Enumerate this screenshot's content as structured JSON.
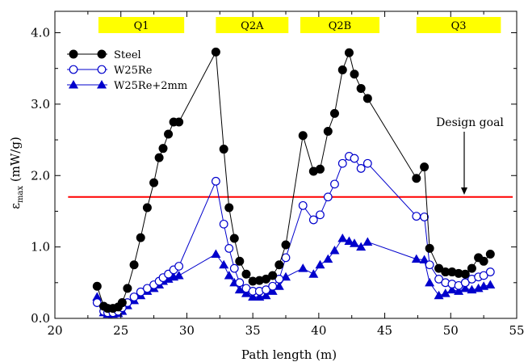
{
  "chart_data": {
    "type": "line",
    "xlabel": "Path length (m)",
    "ylabel_main": "ε",
    "ylabel_sub": "max",
    "ylabel_unit": " (mW/g)",
    "xlim": [
      20,
      55
    ],
    "ylim": [
      0,
      4.3
    ],
    "xticks": [
      20,
      25,
      30,
      35,
      40,
      45,
      50,
      55
    ],
    "xtick_labels": [
      "20",
      "25",
      "30",
      "35",
      "40",
      "45",
      "50",
      "55"
    ],
    "yticks": [
      0,
      1,
      2,
      3,
      4
    ],
    "ytick_labels": [
      "0.0",
      "1.0",
      "2.0",
      "3.0",
      "4.0"
    ],
    "grid": false,
    "legend_position": "top-left",
    "regions": [
      {
        "label": "Q1",
        "x": [
          23.3,
          29.8
        ]
      },
      {
        "label": "Q2A",
        "x": [
          32.2,
          37.7
        ]
      },
      {
        "label": "Q2B",
        "x": [
          38.6,
          44.6
        ]
      },
      {
        "label": "Q3",
        "x": [
          47.4,
          53.8
        ]
      }
    ],
    "reference_line": {
      "y": 1.7,
      "label": "Design goal",
      "color": "#ff0000"
    },
    "series": [
      {
        "name": "Steel",
        "marker": "filled-circle",
        "color": "#000000",
        "x": [
          23.2,
          23.7,
          24.0,
          24.4,
          24.8,
          25.1,
          25.5,
          26.0,
          26.5,
          27.0,
          27.5,
          27.9,
          28.2,
          28.6,
          29.0,
          29.4,
          32.2,
          32.8,
          33.2,
          33.6,
          34.0,
          34.5,
          35.0,
          35.5,
          36.0,
          36.5,
          37.0,
          37.5,
          38.8,
          39.6,
          40.1,
          40.7,
          41.2,
          41.8,
          42.3,
          42.7,
          43.2,
          43.7,
          47.4,
          48.0,
          48.4,
          49.1,
          49.6,
          50.1,
          50.6,
          51.1,
          51.6,
          52.1,
          52.5,
          53.0
        ],
        "y": [
          0.45,
          0.17,
          0.14,
          0.14,
          0.16,
          0.22,
          0.42,
          0.75,
          1.13,
          1.55,
          1.9,
          2.25,
          2.38,
          2.58,
          2.75,
          2.75,
          3.73,
          2.37,
          1.55,
          1.12,
          0.8,
          0.62,
          0.52,
          0.53,
          0.55,
          0.6,
          0.75,
          1.03,
          2.56,
          2.06,
          2.09,
          2.62,
          2.87,
          3.48,
          3.72,
          3.42,
          3.22,
          3.08,
          1.96,
          2.12,
          0.98,
          0.7,
          0.65,
          0.65,
          0.63,
          0.62,
          0.7,
          0.85,
          0.8,
          0.9
        ]
      },
      {
        "name": "W25Re",
        "marker": "open-circle",
        "color": "#0000cc",
        "x": [
          23.2,
          23.7,
          24.0,
          24.4,
          24.8,
          25.1,
          25.5,
          26.0,
          26.5,
          27.0,
          27.5,
          27.9,
          28.2,
          28.6,
          29.0,
          29.4,
          32.2,
          32.8,
          33.2,
          33.6,
          34.0,
          34.5,
          35.0,
          35.5,
          36.0,
          36.5,
          37.0,
          37.5,
          38.8,
          39.6,
          40.1,
          40.7,
          41.2,
          41.8,
          42.3,
          42.7,
          43.2,
          43.7,
          47.4,
          48.0,
          48.4,
          49.1,
          49.6,
          50.1,
          50.6,
          51.1,
          51.6,
          52.1,
          52.5,
          53.0
        ],
        "y": [
          0.22,
          0.1,
          0.08,
          0.08,
          0.1,
          0.15,
          0.22,
          0.3,
          0.37,
          0.42,
          0.47,
          0.52,
          0.57,
          0.62,
          0.68,
          0.73,
          1.92,
          1.32,
          0.98,
          0.7,
          0.5,
          0.42,
          0.38,
          0.38,
          0.4,
          0.45,
          0.55,
          0.85,
          1.58,
          1.38,
          1.45,
          1.7,
          1.88,
          2.17,
          2.27,
          2.24,
          2.1,
          2.17,
          1.43,
          1.42,
          0.75,
          0.55,
          0.5,
          0.48,
          0.46,
          0.5,
          0.55,
          0.58,
          0.6,
          0.65
        ]
      },
      {
        "name": "W25Re+2mm",
        "marker": "filled-triangle",
        "color": "#0000cc",
        "x": [
          23.2,
          23.7,
          24.0,
          24.4,
          24.8,
          25.1,
          25.5,
          26.0,
          26.5,
          27.0,
          27.5,
          27.9,
          28.2,
          28.6,
          29.0,
          29.4,
          32.2,
          32.8,
          33.2,
          33.6,
          34.0,
          34.5,
          35.0,
          35.5,
          36.0,
          36.5,
          37.0,
          37.5,
          38.8,
          39.6,
          40.1,
          40.7,
          41.2,
          41.8,
          42.3,
          42.7,
          43.2,
          43.7,
          47.4,
          48.0,
          48.4,
          49.1,
          49.6,
          50.1,
          50.6,
          51.1,
          51.6,
          52.1,
          52.5,
          53.0
        ],
        "y": [
          0.3,
          0.08,
          0.06,
          0.06,
          0.07,
          0.1,
          0.18,
          0.25,
          0.32,
          0.38,
          0.42,
          0.47,
          0.52,
          0.55,
          0.58,
          0.6,
          0.9,
          0.75,
          0.6,
          0.5,
          0.4,
          0.35,
          0.3,
          0.3,
          0.32,
          0.38,
          0.45,
          0.58,
          0.7,
          0.62,
          0.75,
          0.83,
          0.95,
          1.12,
          1.08,
          1.05,
          1.0,
          1.07,
          0.83,
          0.82,
          0.5,
          0.32,
          0.35,
          0.4,
          0.38,
          0.42,
          0.4,
          0.42,
          0.45,
          0.47
        ]
      }
    ]
  }
}
